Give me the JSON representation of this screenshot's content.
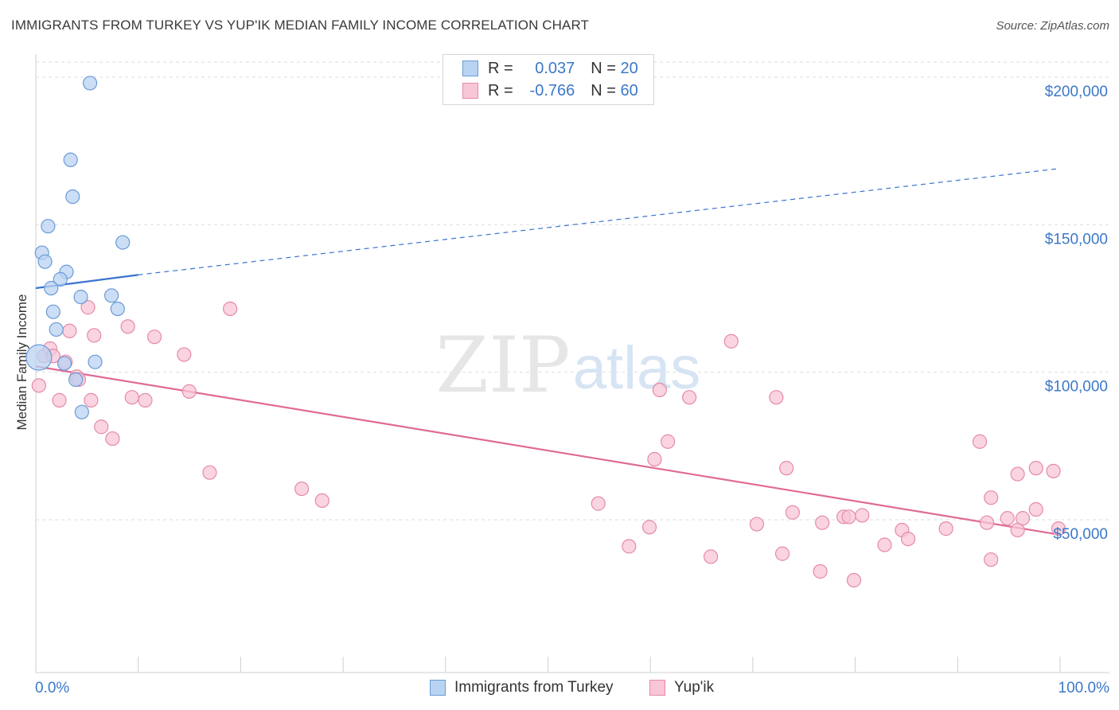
{
  "title": "IMMIGRANTS FROM TURKEY VS YUP'IK MEDIAN FAMILY INCOME CORRELATION CHART",
  "source": "Source: ZipAtlas.com",
  "watermark": {
    "zip": "ZIP",
    "atlas": "atlas"
  },
  "colors": {
    "blue_fill": "#b9d3f2",
    "blue_stroke": "#6a9bd8",
    "blue_line": "#3a74cf",
    "pink_fill": "#f8c6d6",
    "pink_stroke": "#e58aa8",
    "pink_line": "#e06a96",
    "tick_text": "#3c78c8",
    "grid": "#dedede"
  },
  "legend": {
    "rows": [
      {
        "r_label": "R =",
        "r_value": "0.037",
        "n_label": "N =",
        "n_value": "20"
      },
      {
        "r_label": "R =",
        "r_value": "-0.766",
        "n_label": "N =",
        "n_value": "60"
      }
    ]
  },
  "bottom_legend": {
    "series1": "Immigrants from Turkey",
    "series2": "Yup'ik"
  },
  "chart_data": {
    "type": "scatter",
    "title": "IMMIGRANTS FROM TURKEY VS YUP'IK MEDIAN FAMILY INCOME CORRELATION CHART",
    "xlabel": "",
    "ylabel": "Median Family Income",
    "xlim": [
      0,
      100
    ],
    "ylim": [
      0,
      210000
    ],
    "x_tick_labels": [
      "0.0%",
      "100.0%"
    ],
    "y_ticks": [
      50000,
      100000,
      150000,
      200000
    ],
    "y_tick_labels": [
      "$50,000",
      "$100,000",
      "$150,000",
      "$200,000"
    ],
    "grid": true,
    "series": [
      {
        "name": "Immigrants from Turkey",
        "r": 0.037,
        "n": 20,
        "trend": {
          "x": [
            0,
            10
          ],
          "y": [
            128500,
            133000
          ],
          "dashed_to": [
            100,
            169000
          ]
        },
        "points": [
          [
            0.3,
            105000,
            "large"
          ],
          [
            5.3,
            198000
          ],
          [
            3.4,
            172000
          ],
          [
            3.6,
            159500
          ],
          [
            1.2,
            149500
          ],
          [
            0.6,
            140500
          ],
          [
            0.9,
            137500
          ],
          [
            8.5,
            144000
          ],
          [
            3.0,
            134000
          ],
          [
            2.4,
            131500
          ],
          [
            1.5,
            128500
          ],
          [
            4.4,
            125500
          ],
          [
            7.4,
            126000
          ],
          [
            1.7,
            120500
          ],
          [
            8.0,
            121500
          ],
          [
            2.0,
            114500
          ],
          [
            2.8,
            103000
          ],
          [
            5.8,
            103500
          ],
          [
            3.9,
            97500
          ],
          [
            4.5,
            86500
          ]
        ]
      },
      {
        "name": "Yup'ik",
        "r": -0.766,
        "n": 60,
        "trend": {
          "x": [
            0,
            100
          ],
          "y": [
            102000,
            45000
          ]
        },
        "points": [
          [
            0.3,
            95500
          ],
          [
            0.8,
            105500
          ],
          [
            1.4,
            108000
          ],
          [
            1.7,
            105500
          ],
          [
            2.3,
            90500
          ],
          [
            2.9,
            103500
          ],
          [
            3.3,
            114000
          ],
          [
            4.0,
            98500
          ],
          [
            4.2,
            97500
          ],
          [
            5.1,
            122000
          ],
          [
            5.4,
            90500
          ],
          [
            5.7,
            112500
          ],
          [
            6.4,
            81500
          ],
          [
            7.5,
            77500
          ],
          [
            9.0,
            115500
          ],
          [
            9.4,
            91500
          ],
          [
            10.7,
            90500
          ],
          [
            11.6,
            112000
          ],
          [
            14.5,
            106000
          ],
          [
            15.0,
            93500
          ],
          [
            17.0,
            66000
          ],
          [
            19.0,
            121500
          ],
          [
            26.0,
            60500
          ],
          [
            28.0,
            56500
          ],
          [
            55.0,
            55500
          ],
          [
            58.0,
            41000
          ],
          [
            60.0,
            47500
          ],
          [
            60.5,
            70500
          ],
          [
            61.0,
            94000
          ],
          [
            61.8,
            76500
          ],
          [
            63.9,
            91500
          ],
          [
            66.0,
            37500
          ],
          [
            68.0,
            110500
          ],
          [
            70.5,
            48500
          ],
          [
            72.4,
            91500
          ],
          [
            73.0,
            38500
          ],
          [
            73.4,
            67500
          ],
          [
            74.0,
            52500
          ],
          [
            76.7,
            32500
          ],
          [
            76.9,
            49000
          ],
          [
            79.0,
            51000
          ],
          [
            79.5,
            51000
          ],
          [
            80.0,
            29500
          ],
          [
            80.8,
            51500
          ],
          [
            83.0,
            41500
          ],
          [
            84.7,
            46500
          ],
          [
            85.3,
            43500
          ],
          [
            89.0,
            47000
          ],
          [
            92.3,
            76500
          ],
          [
            93.0,
            49000
          ],
          [
            93.4,
            57500
          ],
          [
            93.4,
            36500
          ],
          [
            95.0,
            50500
          ],
          [
            96.0,
            46500
          ],
          [
            96.0,
            65500
          ],
          [
            96.5,
            50500
          ],
          [
            97.8,
            53500
          ],
          [
            97.8,
            67500
          ],
          [
            99.5,
            66500
          ],
          [
            100.0,
            47000
          ]
        ]
      }
    ]
  }
}
